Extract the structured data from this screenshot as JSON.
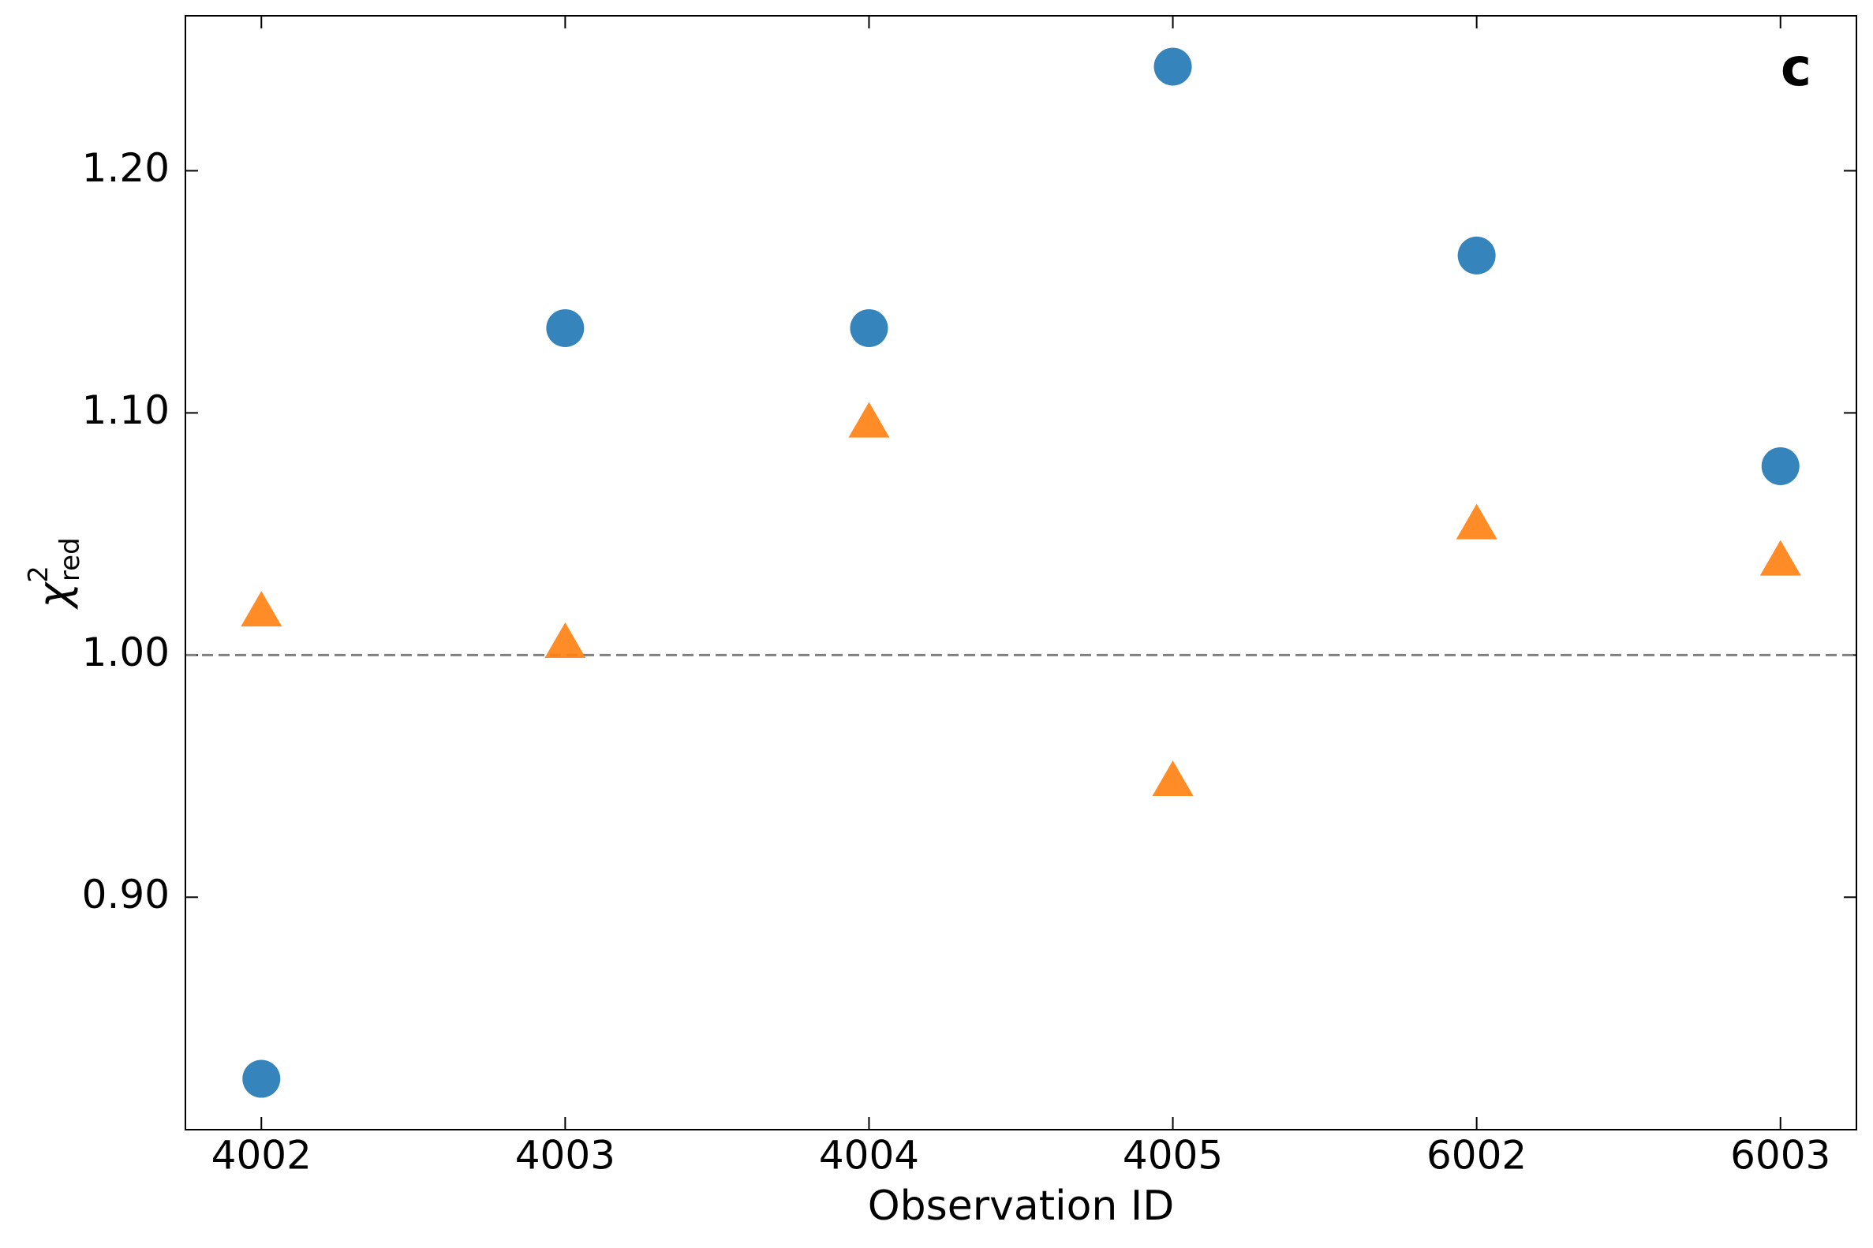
{
  "chart_data": {
    "type": "scatter",
    "categories": [
      "4002",
      "4003",
      "4004",
      "4005",
      "6002",
      "6003"
    ],
    "xlabel": "Observation ID",
    "ylabel": {
      "symbol": "χ",
      "superscript": "2",
      "subscript": "red"
    },
    "annotation": "c",
    "series": [
      {
        "color": "#1f77b4",
        "marker": "circle",
        "values": [
          0.825,
          1.135,
          1.135,
          1.243,
          1.165,
          1.078
        ]
      },
      {
        "color": "#ff7f0e",
        "marker": "triangle",
        "values": [
          1.018,
          1.005,
          1.096,
          0.948,
          1.054,
          1.039
        ]
      }
    ],
    "reference_line": {
      "value": 1.0,
      "color": "#808080",
      "style": "dashed"
    },
    "ylim": [
      0.804,
      1.264
    ],
    "yticks": [
      {
        "value": 0.9,
        "label": "0.90"
      },
      {
        "value": 1.0,
        "label": "1.00"
      },
      {
        "value": 1.1,
        "label": "1.10"
      },
      {
        "value": 1.2,
        "label": "1.20"
      }
    ]
  }
}
